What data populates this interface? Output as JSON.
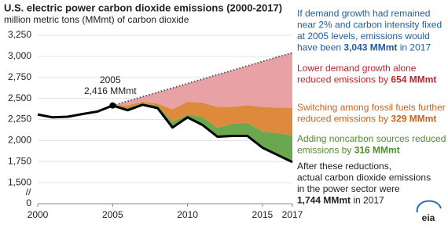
{
  "chart_data": {
    "type": "line",
    "title": "U.S. electric power carbon dioxide emissions (2000-2017)",
    "subtitle": "million metric tons (MMmt) of carbon dioxide",
    "x": [
      2000,
      2001,
      2002,
      2003,
      2004,
      2005,
      2006,
      2007,
      2008,
      2009,
      2010,
      2011,
      2012,
      2013,
      2014,
      2015,
      2016,
      2017
    ],
    "xlim": [
      2000,
      2017
    ],
    "xticks": [
      2000,
      2005,
      2010,
      2015,
      2017
    ],
    "ylim": [
      1250,
      3250
    ],
    "yticks": [
      {
        "value": 1500,
        "label": "1,500"
      },
      {
        "value": 1750,
        "label": "1,750"
      },
      {
        "value": 2000,
        "label": "2,000"
      },
      {
        "value": 2250,
        "label": "2,250"
      },
      {
        "value": 2500,
        "label": "2,500"
      },
      {
        "value": 2750,
        "label": "2,750"
      },
      {
        "value": 3000,
        "label": "3,000"
      },
      {
        "value": 3250,
        "label": "3,250"
      }
    ],
    "y_axis_break": {
      "symbol": "//",
      "bottom_label": "0"
    },
    "grid": true,
    "series": [
      {
        "color": "#000000",
        "style": "solid",
        "values": [
          2310,
          2275,
          2283,
          2315,
          2345,
          2416,
          2360,
          2425,
          2385,
          2155,
          2275,
          2185,
          2045,
          2055,
          2055,
          1915,
          1830,
          1744
        ]
      },
      {
        "color": "#555555",
        "style": "dotted",
        "values": [
          null,
          null,
          null,
          null,
          null,
          2416,
          2468,
          2521,
          2573,
          2625,
          2677,
          2730,
          2782,
          2834,
          2886,
          2939,
          2991,
          3043
        ]
      }
    ],
    "stacked_areas": [
      {
        "color": "#6aa84f",
        "values": [
          null,
          null,
          null,
          null,
          null,
          0,
          30,
          15,
          35,
          65,
          35,
          95,
          105,
          145,
          155,
          195,
          260,
          316
        ]
      },
      {
        "color": "#dd8a3c",
        "values": [
          null,
          null,
          null,
          null,
          null,
          0,
          30,
          20,
          20,
          150,
          150,
          170,
          250,
          200,
          210,
          290,
          300,
          329
        ]
      },
      {
        "color": "#e8a2a6",
        "values": [
          null,
          null,
          null,
          null,
          null,
          0,
          48,
          61,
          133,
          255,
          217,
          280,
          382,
          434,
          466,
          539,
          601,
          654
        ]
      }
    ],
    "point": {
      "labels": [
        "2005",
        "2,416 MMmt"
      ]
    },
    "annotations": [
      {
        "color": "#1f5c9e",
        "lines": [
          [
            {
              "text": "If demand growth had remained"
            }
          ],
          [
            {
              "text": "near 2% and carbon intensity fixed"
            }
          ],
          [
            {
              "text": "at 2005 levels, emissions would"
            }
          ],
          [
            {
              "text": "have been "
            },
            {
              "text": "3,043 MMmt",
              "bold": true
            },
            {
              "text": " in 2017"
            }
          ]
        ]
      },
      {
        "color": "#b3282d",
        "lines": [
          [
            {
              "text": "Lower demand growth alone"
            }
          ],
          [
            {
              "text": "reduced emissions by "
            },
            {
              "text": "654 MMmt",
              "bold": true
            }
          ]
        ]
      },
      {
        "color": "#c5641b",
        "lines": [
          [
            {
              "text": "Switching among fossil fuels further"
            }
          ],
          [
            {
              "text": "reduced emissions by "
            },
            {
              "text": "329 MMmt",
              "bold": true
            }
          ]
        ]
      },
      {
        "color": "#4f8f2a",
        "lines": [
          [
            {
              "text": "Adding noncarbon sources reduced"
            }
          ],
          [
            {
              "text": "emissions by "
            },
            {
              "text": "316 MMmt",
              "bold": true
            }
          ]
        ]
      },
      {
        "color": "#222222",
        "lines": [
          [
            {
              "text": "After these reductions,"
            }
          ],
          [
            {
              "text": "actual carbon dioxide emissions"
            }
          ],
          [
            {
              "text": "in the power sector were"
            }
          ],
          [
            {
              "text": "1,744 MMmt",
              "bold": true
            },
            {
              "text": " in 2017"
            }
          ]
        ]
      }
    ],
    "logo": "eia"
  }
}
